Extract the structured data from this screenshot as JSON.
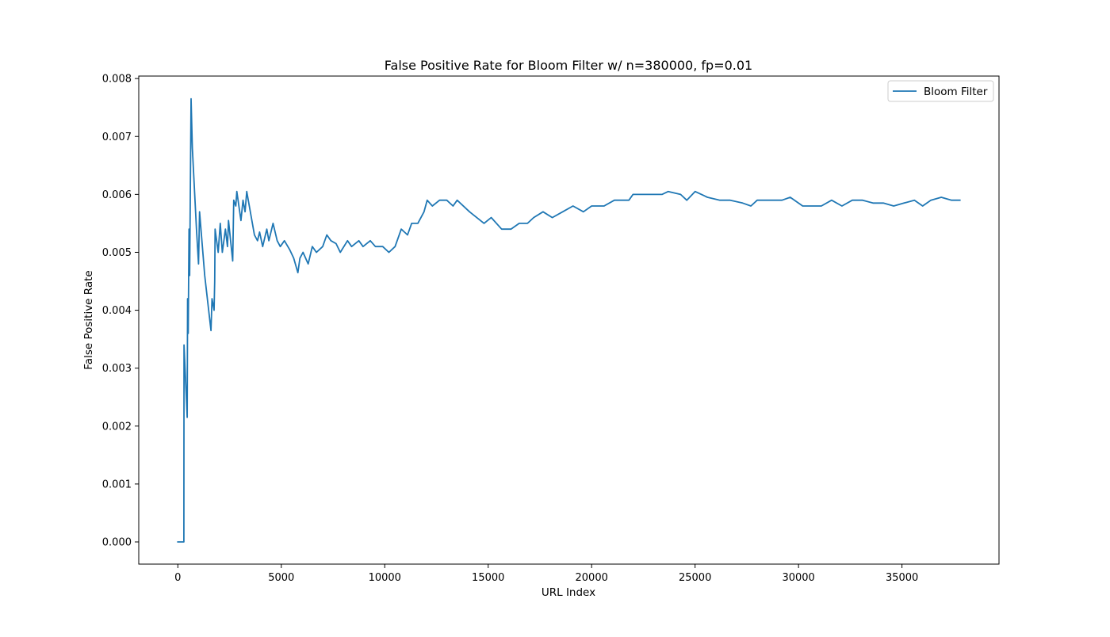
{
  "chart_data": {
    "type": "line",
    "title": "False Positive Rate for Bloom Filter w/ n=380000, fp=0.01",
    "xlabel": "URL Index",
    "ylabel": "False Positive Rate",
    "xlim": [
      -1890,
      39690
    ],
    "ylim": [
      -0.000383,
      0.008043
    ],
    "xticks": [
      0,
      5000,
      10000,
      15000,
      20000,
      25000,
      30000,
      35000
    ],
    "xtick_labels": [
      "0",
      "5000",
      "10000",
      "15000",
      "20000",
      "25000",
      "30000",
      "35000"
    ],
    "yticks": [
      0.0,
      0.001,
      0.002,
      0.003,
      0.004,
      0.005,
      0.006,
      0.007,
      0.008
    ],
    "ytick_labels": [
      "0.000",
      "0.001",
      "0.002",
      "0.003",
      "0.004",
      "0.005",
      "0.006",
      "0.007",
      "0.008"
    ],
    "grid": false,
    "legend_position": "top-right",
    "series": [
      {
        "name": "Bloom Filter",
        "color": "#1f77b4",
        "points": [
          [
            0,
            0.0
          ],
          [
            290,
            0.0
          ],
          [
            300,
            0.0034
          ],
          [
            450,
            0.00215
          ],
          [
            470,
            0.0042
          ],
          [
            500,
            0.0036
          ],
          [
            540,
            0.0054
          ],
          [
            570,
            0.0046
          ],
          [
            640,
            0.00765
          ],
          [
            700,
            0.0068
          ],
          [
            900,
            0.0054
          ],
          [
            1000,
            0.0048
          ],
          [
            1050,
            0.0057
          ],
          [
            1300,
            0.0046
          ],
          [
            1600,
            0.00365
          ],
          [
            1650,
            0.0042
          ],
          [
            1750,
            0.004
          ],
          [
            1780,
            0.0045
          ],
          [
            1800,
            0.0054
          ],
          [
            1950,
            0.005
          ],
          [
            2050,
            0.0055
          ],
          [
            2150,
            0.005
          ],
          [
            2300,
            0.0054
          ],
          [
            2400,
            0.0051
          ],
          [
            2450,
            0.00555
          ],
          [
            2650,
            0.00485
          ],
          [
            2700,
            0.0059
          ],
          [
            2800,
            0.0058
          ],
          [
            2850,
            0.00605
          ],
          [
            3050,
            0.00555
          ],
          [
            3150,
            0.0059
          ],
          [
            3250,
            0.0057
          ],
          [
            3330,
            0.00605
          ],
          [
            3700,
            0.0053
          ],
          [
            3850,
            0.0052
          ],
          [
            3950,
            0.00535
          ],
          [
            4100,
            0.0051
          ],
          [
            4300,
            0.0054
          ],
          [
            4400,
            0.0052
          ],
          [
            4600,
            0.0055
          ],
          [
            4800,
            0.0052
          ],
          [
            4950,
            0.0051
          ],
          [
            5150,
            0.0052
          ],
          [
            5400,
            0.00505
          ],
          [
            5600,
            0.0049
          ],
          [
            5800,
            0.00465
          ],
          [
            5900,
            0.0049
          ],
          [
            6050,
            0.005
          ],
          [
            6300,
            0.0048
          ],
          [
            6500,
            0.0051
          ],
          [
            6700,
            0.005
          ],
          [
            7000,
            0.0051
          ],
          [
            7200,
            0.0053
          ],
          [
            7400,
            0.0052
          ],
          [
            7650,
            0.00515
          ],
          [
            7850,
            0.005
          ],
          [
            8200,
            0.0052
          ],
          [
            8400,
            0.0051
          ],
          [
            8750,
            0.0052
          ],
          [
            8950,
            0.0051
          ],
          [
            9300,
            0.0052
          ],
          [
            9550,
            0.0051
          ],
          [
            9900,
            0.0051
          ],
          [
            10200,
            0.005
          ],
          [
            10500,
            0.0051
          ],
          [
            10800,
            0.0054
          ],
          [
            11100,
            0.0053
          ],
          [
            11300,
            0.0055
          ],
          [
            11600,
            0.0055
          ],
          [
            11900,
            0.0057
          ],
          [
            12050,
            0.0059
          ],
          [
            12300,
            0.0058
          ],
          [
            12650,
            0.0059
          ],
          [
            13000,
            0.0059
          ],
          [
            13300,
            0.0058
          ],
          [
            13500,
            0.0059
          ],
          [
            14100,
            0.0057
          ],
          [
            14800,
            0.0055
          ],
          [
            15150,
            0.0056
          ],
          [
            15650,
            0.0054
          ],
          [
            16100,
            0.0054
          ],
          [
            16500,
            0.0055
          ],
          [
            16900,
            0.0055
          ],
          [
            17200,
            0.0056
          ],
          [
            17650,
            0.0057
          ],
          [
            18100,
            0.0056
          ],
          [
            18600,
            0.0057
          ],
          [
            19100,
            0.0058
          ],
          [
            19600,
            0.0057
          ],
          [
            20000,
            0.0058
          ],
          [
            20600,
            0.0058
          ],
          [
            21100,
            0.0059
          ],
          [
            21350,
            0.0059
          ],
          [
            21800,
            0.0059
          ],
          [
            22000,
            0.006
          ],
          [
            22500,
            0.006
          ],
          [
            23000,
            0.006
          ],
          [
            23400,
            0.006
          ],
          [
            23700,
            0.00605
          ],
          [
            24300,
            0.006
          ],
          [
            24600,
            0.0059
          ],
          [
            25000,
            0.00605
          ],
          [
            25600,
            0.00595
          ],
          [
            26200,
            0.0059
          ],
          [
            26700,
            0.0059
          ],
          [
            27300,
            0.00585
          ],
          [
            27700,
            0.0058
          ],
          [
            28000,
            0.0059
          ],
          [
            28400,
            0.0059
          ],
          [
            28800,
            0.0059
          ],
          [
            29200,
            0.0059
          ],
          [
            29600,
            0.00595
          ],
          [
            30200,
            0.0058
          ],
          [
            30700,
            0.0058
          ],
          [
            31100,
            0.0058
          ],
          [
            31600,
            0.0059
          ],
          [
            32100,
            0.0058
          ],
          [
            32600,
            0.0059
          ],
          [
            33100,
            0.0059
          ],
          [
            33600,
            0.00585
          ],
          [
            34100,
            0.00585
          ],
          [
            34600,
            0.0058
          ],
          [
            35100,
            0.00585
          ],
          [
            35600,
            0.0059
          ],
          [
            36000,
            0.0058
          ],
          [
            36400,
            0.0059
          ],
          [
            36900,
            0.00595
          ],
          [
            37400,
            0.0059
          ],
          [
            37800,
            0.0059
          ]
        ]
      }
    ]
  }
}
